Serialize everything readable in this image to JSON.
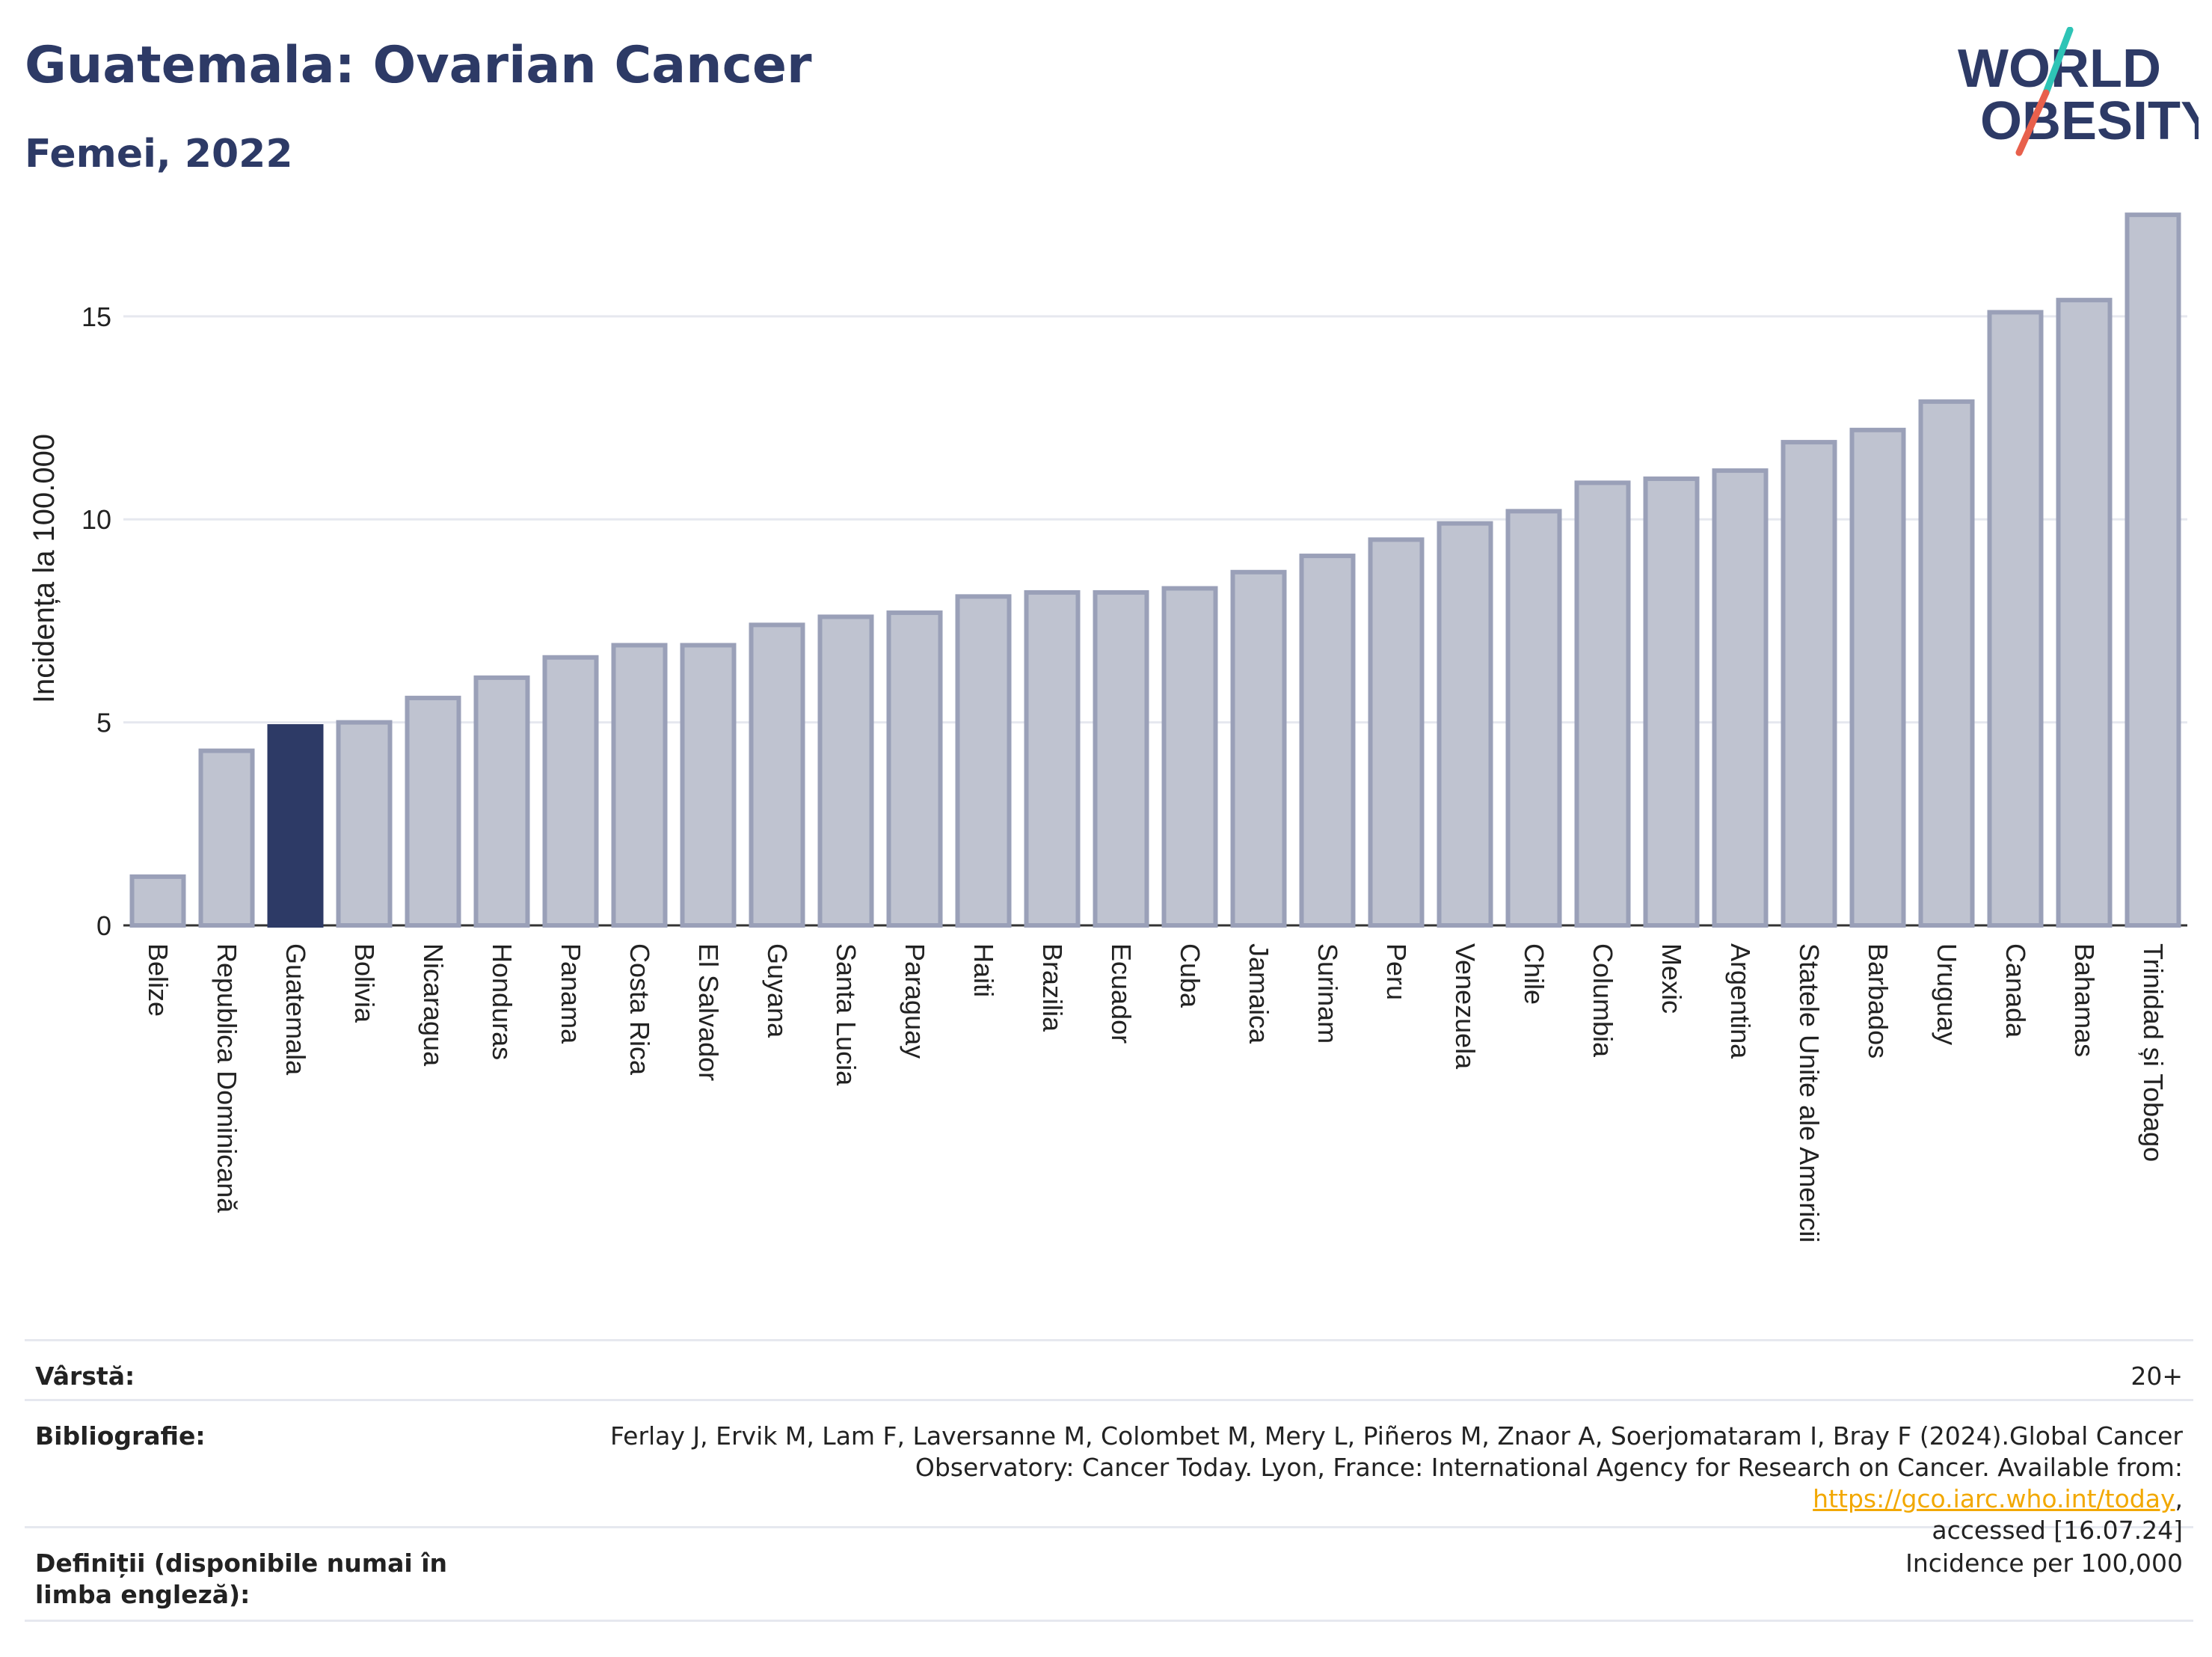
{
  "header": {
    "title": "Guatemala: Ovarian Cancer",
    "subtitle": "Femei, 2022"
  },
  "logo": {
    "line1": "WORLD",
    "line2": "OBESITY",
    "brand_color": "#2d3a66",
    "slash_colors": [
      "#2ec4b6",
      "#e8604c"
    ]
  },
  "colors": {
    "highlight": "#2d3a66",
    "bar_fill": "#bfc3d0",
    "bar_stroke": "#9aa0b8"
  },
  "chart_data": {
    "type": "bar",
    "title": "",
    "xlabel": "",
    "ylabel": "Incidența la 100.000",
    "ylim": [
      0,
      18
    ],
    "yticks": [
      0,
      5,
      10,
      15
    ],
    "grid": true,
    "highlight": "Guatemala",
    "categories": [
      "Belize",
      "Republica Dominicană",
      "Guatemala",
      "Bolivia",
      "Nicaragua",
      "Honduras",
      "Panama",
      "Costa Rica",
      "El Salvador",
      "Guyana",
      "Santa Lucia",
      "Paraguay",
      "Haiti",
      "Brazilia",
      "Ecuador",
      "Cuba",
      "Jamaica",
      "Surinam",
      "Peru",
      "Venezuela",
      "Chile",
      "Columbia",
      "Mexic",
      "Argentina",
      "Statele Unite ale Americii",
      "Barbados",
      "Uruguay",
      "Canada",
      "Bahamas",
      "Trinidad și Tobago"
    ],
    "values": [
      1.2,
      4.3,
      4.9,
      5.0,
      5.6,
      6.1,
      6.6,
      6.9,
      6.9,
      7.4,
      7.6,
      7.7,
      8.1,
      8.2,
      8.2,
      8.3,
      8.7,
      9.1,
      9.5,
      9.9,
      10.2,
      10.9,
      11.0,
      11.2,
      11.9,
      12.2,
      12.9,
      15.1,
      15.4,
      17.5
    ]
  },
  "footer": {
    "age_label": "Vârstă:",
    "age_value": "20+",
    "bib_label": "Bibliografie:",
    "bib_text1": "Ferlay J, Ervik M, Lam F, Laversanne M, Colombet M, Mery L, Piñeros M, Znaor A, Soerjomataram I, Bray F (2024).Global Cancer",
    "bib_text2": "Observatory: Cancer Today. Lyon, France: International Agency for Research on Cancer. Available from: ",
    "bib_link": "https://gco.iarc.who.int/today",
    "bib_text3": ",",
    "bib_text4": "accessed [16.07.24]",
    "def_label": "Definiții (disponibile numai în limba engleză):",
    "def_value": "Incidence per 100,000"
  }
}
